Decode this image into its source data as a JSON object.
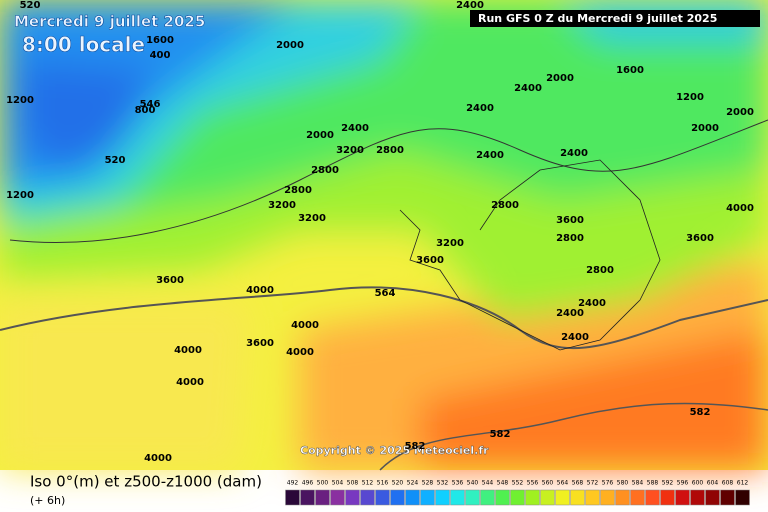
{
  "header": {
    "date": "Mercredi 9 juillet 2025",
    "time": "8:00 locale",
    "run": "Run GFS 0 Z du Mercredi 9 juillet 2025"
  },
  "map": {
    "copyright": "Copyright © 2025 Meteociel.fr",
    "contour_labels": [
      "520",
      "1600",
      "2000",
      "2400",
      "400",
      "800",
      "1200",
      "546",
      "520",
      "1200",
      "2000",
      "2400",
      "2800",
      "3200",
      "3600",
      "4000",
      "2800",
      "3200",
      "3200",
      "2800",
      "2400",
      "2000",
      "2400",
      "2800",
      "2400",
      "3600",
      "3200",
      "3600",
      "564",
      "4000",
      "4000",
      "3600",
      "4000",
      "4000",
      "4000",
      "2800",
      "2400",
      "2400",
      "2400",
      "2800",
      "3600",
      "4000",
      "582",
      "582",
      "582",
      "2000",
      "1600",
      "2400",
      "2000",
      "1200"
    ]
  },
  "footer": {
    "title": "Iso 0°(m) et z500-z1000 (dam)",
    "step": "(+ 6h)"
  },
  "legend": {
    "values": [
      492,
      496,
      500,
      504,
      508,
      512,
      516,
      520,
      524,
      528,
      532,
      536,
      540,
      544,
      548,
      552,
      556,
      560,
      564,
      568,
      572,
      576,
      580,
      584,
      588,
      592,
      596,
      600,
      604,
      608,
      612
    ],
    "colors": [
      "#2a0838",
      "#4a1460",
      "#6a2080",
      "#8a30a0",
      "#7838c0",
      "#5848d0",
      "#3a5ae0",
      "#2070f0",
      "#1090f8",
      "#10b0ff",
      "#10d0ff",
      "#20e8e8",
      "#30f0c0",
      "#40f080",
      "#50f050",
      "#70f030",
      "#a0f020",
      "#c8f020",
      "#f0f020",
      "#f8e020",
      "#ffc820",
      "#ffb020",
      "#ff9020",
      "#ff7020",
      "#ff5020",
      "#f03010",
      "#d01010",
      "#b00808",
      "#900404",
      "#600000",
      "#300000"
    ]
  }
}
